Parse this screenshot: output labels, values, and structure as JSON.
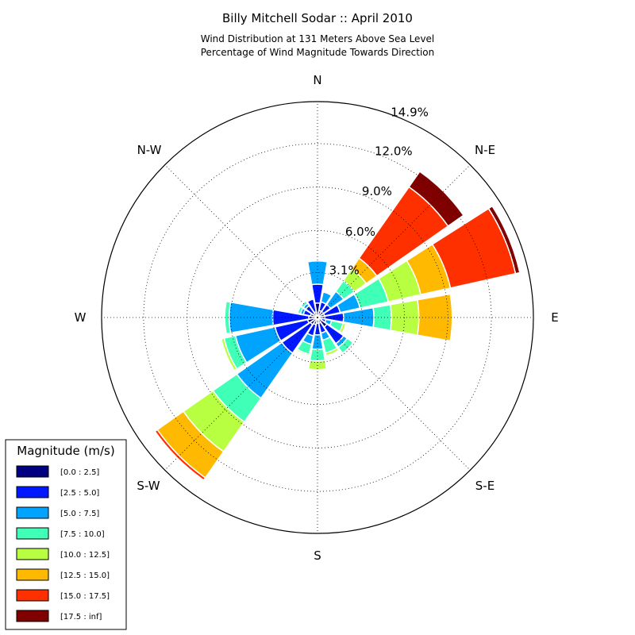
{
  "chart_data": {
    "type": "windrose",
    "title": "Billy Mitchell Sodar :: April 2010",
    "subtitle_lines": [
      "Wind Distribution at 131 Meters Above Sea Level",
      "Percentage of Wind Magnitude Towards Direction"
    ],
    "direction_labels": {
      "N": "N",
      "NE": "N-E",
      "E": "E",
      "SE": "S-E",
      "S": "S",
      "SW": "S-W",
      "W": "W",
      "NW": "N-W"
    },
    "radial_ticks": [
      "3.1%",
      "6.0%",
      "9.0%",
      "12.0%",
      "14.9%"
    ],
    "radial_tick_values": [
      3.1,
      6.0,
      9.0,
      12.0,
      14.9
    ],
    "rmax": 14.9,
    "legend": {
      "title": "Magnitude (m/s)",
      "bins": [
        "[0.0 : 2.5]",
        "[2.5 : 5.0]",
        "[5.0 : 7.5]",
        "[7.5 : 10.0]",
        "[10.0 : 12.5]",
        "[12.5 : 15.0]",
        "[15.0 : 17.5]",
        "[17.5 : inf]"
      ]
    },
    "colors": [
      "#000080",
      "#0018ff",
      "#00a4ff",
      "#40ffb7",
      "#b7ff40",
      "#ffb900",
      "#ff3000",
      "#800000"
    ],
    "sector_width_deg": 20,
    "sectors": [
      {
        "dir": 0,
        "cum": [
          1.0,
          2.3,
          3.9
        ]
      },
      {
        "dir": 22.5,
        "cum": [
          0.5,
          1.1,
          1.8
        ]
      },
      {
        "dir": 45,
        "cum": [
          0.5,
          1.1,
          2.2,
          3.1,
          4.1,
          5.0,
          11.0,
          12.3
        ]
      },
      {
        "dir": 67.5,
        "cum": [
          0.5,
          1.6,
          3.0,
          5.0,
          7.3,
          9.4,
          14.0,
          14.3
        ]
      },
      {
        "dir": 90,
        "cum": [
          0.5,
          1.8,
          3.9,
          5.1,
          7.0,
          9.3
        ]
      },
      {
        "dir": 112.5,
        "cum": [
          0.3,
          0.6,
          1.0,
          1.8,
          2.0
        ]
      },
      {
        "dir": 135,
        "cum": [
          0.8,
          2.2,
          2.5,
          3.0
        ]
      },
      {
        "dir": 157.5,
        "cum": [
          0.4,
          1.1,
          1.6,
          2.5,
          2.7
        ]
      },
      {
        "dir": 180,
        "cum": [
          0.4,
          1.2,
          2.2,
          3.0,
          3.6
        ]
      },
      {
        "dir": 202.5,
        "cum": [
          0.5,
          1.3,
          1.9,
          2.6,
          2.7
        ]
      },
      {
        "dir": 225,
        "cum": [
          0.6,
          3.0,
          6.8,
          8.8,
          11.3,
          13.5,
          13.7
        ]
      },
      {
        "dir": 247.5,
        "cum": [
          0.7,
          3.0,
          5.8,
          6.6,
          6.8
        ]
      },
      {
        "dir": 270,
        "cum": [
          0.6,
          3.1,
          6.1,
          6.4
        ]
      },
      {
        "dir": 292.5,
        "cum": [
          0.5,
          1.0,
          1.2,
          1.4
        ]
      },
      {
        "dir": 315,
        "cum": [
          0.3,
          1.0,
          1.2,
          1.4
        ]
      },
      {
        "dir": 337.5,
        "cum": [
          0.4,
          1.3
        ]
      }
    ]
  }
}
